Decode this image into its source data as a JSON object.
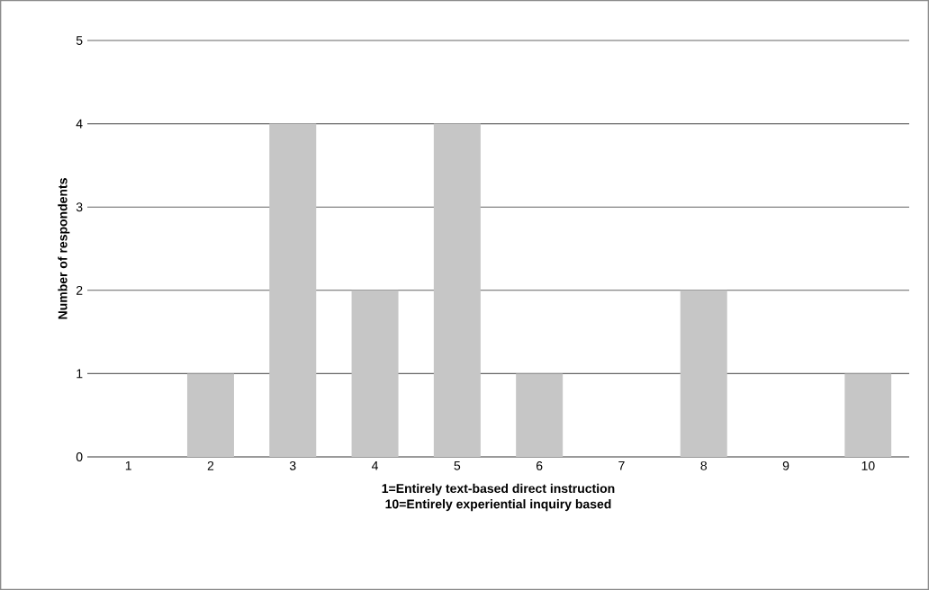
{
  "chart_data": {
    "type": "bar",
    "categories": [
      "1",
      "2",
      "3",
      "4",
      "5",
      "6",
      "7",
      "8",
      "9",
      "10"
    ],
    "values": [
      0,
      1,
      4,
      2,
      4,
      1,
      0,
      2,
      0,
      1
    ],
    "color": "#c6c6c6",
    "xlabel": "1=Entirely text-based direct instruction",
    "annotations": [
      "10=Entirely experiential inquiry based"
    ],
    "ylabel": "Number of respondents",
    "ylim": [
      0,
      5
    ],
    "yticks": [
      0,
      1,
      2,
      3,
      4,
      5
    ],
    "grid": "y"
  }
}
